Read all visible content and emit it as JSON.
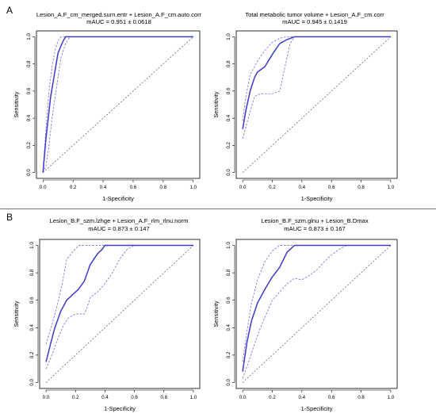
{
  "panels": [
    {
      "letter": "A"
    },
    {
      "letter": "B"
    }
  ],
  "chart_data": [
    {
      "type": "line",
      "panel": "A",
      "title": "Lesion_A.F_cm_merged.surn.entr + Lesion_A.F_cm.auto.corr",
      "subtitle": "mAUC = 0.951 ± 0.0618",
      "xlabel": "1-Specificity",
      "ylabel": "Sensitivity",
      "xlim": [
        0,
        1
      ],
      "ylim": [
        0,
        1
      ],
      "xticks": [
        "0.0",
        "0.2",
        "0.4",
        "0.6",
        "0.8",
        "1.0"
      ],
      "yticks": [
        "0.0",
        "0.2",
        "0.4",
        "0.6",
        "0.8",
        "1.0"
      ],
      "colors": {
        "roc": "#3a3acc",
        "ci": "#7b7be0",
        "diag": "#555555"
      },
      "roc": {
        "x": [
          0.0,
          0.02,
          0.05,
          0.08,
          0.1,
          0.13,
          0.15,
          1.0
        ],
        "y": [
          0.0,
          0.25,
          0.55,
          0.75,
          0.88,
          0.96,
          1.0,
          1.0
        ]
      },
      "ci_upper": {
        "x": [
          0.0,
          0.02,
          0.04,
          0.06,
          0.08,
          0.1,
          0.12,
          1.0
        ],
        "y": [
          0.0,
          0.32,
          0.6,
          0.78,
          0.9,
          0.97,
          1.0,
          1.0
        ]
      },
      "ci_lower": {
        "x": [
          0.0,
          0.02,
          0.04,
          0.06,
          0.08,
          0.1,
          0.12,
          0.15,
          0.18,
          1.0
        ],
        "y": [
          0.0,
          0.05,
          0.2,
          0.4,
          0.55,
          0.7,
          0.85,
          0.95,
          1.0,
          1.0
        ]
      }
    },
    {
      "type": "line",
      "panel": "A",
      "title": "Total metabolic tumor volume + Lesion_A.F_cm.corr",
      "subtitle": "mAUC = 0.945 ± 0.1419",
      "xlabel": "1-Specificity",
      "ylabel": "Sensitivity",
      "xlim": [
        0,
        1
      ],
      "ylim": [
        0,
        1
      ],
      "xticks": [
        "0.0",
        "0.2",
        "0.4",
        "0.6",
        "0.8",
        "1.0"
      ],
      "yticks": [
        "0.0",
        "0.2",
        "0.4",
        "0.6",
        "0.8",
        "1.0"
      ],
      "colors": {
        "roc": "#3a3acc",
        "ci": "#7b7be0",
        "diag": "#555555"
      },
      "roc": {
        "x": [
          0.0,
          0.02,
          0.05,
          0.08,
          0.1,
          0.15,
          0.2,
          0.25,
          0.3,
          0.35,
          1.0
        ],
        "y": [
          0.32,
          0.45,
          0.6,
          0.7,
          0.74,
          0.78,
          0.87,
          0.95,
          0.98,
          1.0,
          1.0
        ]
      },
      "ci_upper": {
        "x": [
          0.0,
          0.02,
          0.05,
          0.1,
          0.15,
          0.2,
          0.25,
          0.3,
          0.35,
          1.0
        ],
        "y": [
          0.38,
          0.55,
          0.72,
          0.82,
          0.9,
          0.96,
          0.99,
          1.0,
          1.0,
          1.0
        ]
      },
      "ci_lower": {
        "x": [
          0.0,
          0.02,
          0.05,
          0.08,
          0.12,
          0.15,
          0.2,
          0.25,
          0.28,
          0.32,
          0.35,
          1.0
        ],
        "y": [
          0.25,
          0.33,
          0.45,
          0.56,
          0.58,
          0.58,
          0.58,
          0.6,
          0.75,
          0.95,
          1.0,
          1.0
        ]
      }
    },
    {
      "type": "line",
      "panel": "B",
      "title": "Lesion_B.F_szm.lzhge + Lesion_A.F_rlm_rlnu.norm",
      "subtitle": "mAUC = 0.873 ± 0.147",
      "xlabel": "1-Specificity",
      "ylabel": "Sensitivity",
      "xlim": [
        0,
        1
      ],
      "ylim": [
        0,
        1
      ],
      "xticks": [
        "0.0",
        "0.2",
        "0.4",
        "0.6",
        "0.8",
        "1.0"
      ],
      "yticks": [
        "0.0",
        "0.2",
        "0.4",
        "0.6",
        "0.8",
        "1.0"
      ],
      "colors": {
        "roc": "#3a3acc",
        "ci": "#7b7be0",
        "diag": "#555555"
      },
      "roc": {
        "x": [
          0.0,
          0.03,
          0.06,
          0.1,
          0.14,
          0.18,
          0.22,
          0.26,
          0.3,
          0.35,
          0.38,
          0.4,
          1.0
        ],
        "y": [
          0.15,
          0.28,
          0.4,
          0.52,
          0.6,
          0.64,
          0.68,
          0.74,
          0.86,
          0.94,
          0.97,
          1.0,
          1.0
        ]
      },
      "ci_upper": {
        "x": [
          0.0,
          0.04,
          0.08,
          0.11,
          0.14,
          0.18,
          0.22,
          0.25,
          1.0
        ],
        "y": [
          0.28,
          0.42,
          0.58,
          0.72,
          0.9,
          0.95,
          1.0,
          1.0,
          1.0
        ]
      },
      "ci_lower": {
        "x": [
          0.0,
          0.04,
          0.08,
          0.12,
          0.15,
          0.2,
          0.26,
          0.28,
          0.3,
          0.35,
          0.4,
          0.45,
          0.5,
          0.55,
          0.6,
          1.0
        ],
        "y": [
          0.1,
          0.2,
          0.32,
          0.42,
          0.47,
          0.5,
          0.5,
          0.55,
          0.62,
          0.66,
          0.72,
          0.8,
          0.9,
          0.97,
          1.0,
          1.0
        ]
      }
    },
    {
      "type": "line",
      "panel": "B",
      "title": "Lesion_B.F_szm.glnu + Lesion_B.Dmax",
      "subtitle": "mAUC = 0.873 ± 0.167",
      "xlabel": "1-Specificity",
      "ylabel": "Sensitivity",
      "xlim": [
        0,
        1
      ],
      "ylim": [
        0,
        1
      ],
      "xticks": [
        "0.0",
        "0.2",
        "0.4",
        "0.6",
        "0.8",
        "1.0"
      ],
      "yticks": [
        "0.0",
        "0.2",
        "0.4",
        "0.6",
        "0.8",
        "1.0"
      ],
      "colors": {
        "roc": "#3a3acc",
        "ci": "#7b7be0",
        "diag": "#555555"
      },
      "roc": {
        "x": [
          0.0,
          0.03,
          0.06,
          0.1,
          0.15,
          0.2,
          0.25,
          0.3,
          0.35,
          1.0
        ],
        "y": [
          0.08,
          0.3,
          0.45,
          0.58,
          0.68,
          0.77,
          0.84,
          0.95,
          1.0,
          1.0
        ]
      },
      "ci_upper": {
        "x": [
          0.0,
          0.03,
          0.06,
          0.1,
          0.15,
          0.2,
          0.25,
          0.3,
          1.0
        ],
        "y": [
          0.15,
          0.38,
          0.58,
          0.75,
          0.88,
          0.96,
          1.0,
          1.0,
          1.0
        ]
      },
      "ci_lower": {
        "x": [
          0.0,
          0.04,
          0.08,
          0.12,
          0.16,
          0.2,
          0.25,
          0.3,
          0.35,
          0.4,
          0.45,
          0.5,
          0.55,
          0.6,
          0.65,
          0.7,
          1.0
        ],
        "y": [
          0.03,
          0.15,
          0.28,
          0.4,
          0.5,
          0.6,
          0.66,
          0.72,
          0.76,
          0.75,
          0.78,
          0.82,
          0.88,
          0.93,
          0.97,
          1.0,
          1.0
        ]
      }
    }
  ]
}
